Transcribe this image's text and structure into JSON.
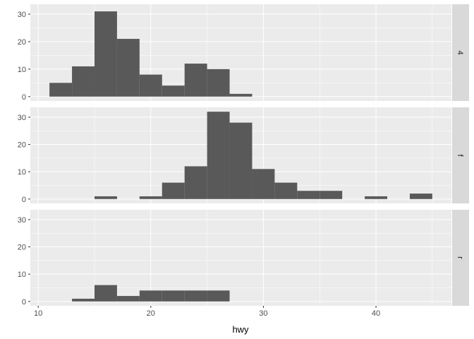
{
  "chart_data": {
    "type": "bar",
    "subtype": "faceted histogram",
    "xlabel": "hwy",
    "ylabel": "",
    "xlim": [
      9.3,
      46.7
    ],
    "ylim": [
      -1.6,
      33.6
    ],
    "xticks": [
      10,
      20,
      30,
      40
    ],
    "yticks": [
      0,
      10,
      20,
      30
    ],
    "binwidth": 2,
    "grid": true,
    "bar_color": "#595959",
    "panel_bg": "#EBEBEB",
    "strip_bg": "#D9D9D9",
    "facets": [
      {
        "label": "4",
        "bins": [
          [
            11,
            5
          ],
          [
            13,
            11
          ],
          [
            15,
            31
          ],
          [
            17,
            21
          ],
          [
            19,
            8
          ],
          [
            21,
            4
          ],
          [
            23,
            12
          ],
          [
            25,
            10
          ],
          [
            27,
            1
          ]
        ]
      },
      {
        "label": "f",
        "bins": [
          [
            15,
            1
          ],
          [
            19,
            1
          ],
          [
            21,
            6
          ],
          [
            23,
            12
          ],
          [
            25,
            32
          ],
          [
            27,
            28
          ],
          [
            29,
            11
          ],
          [
            31,
            6
          ],
          [
            33,
            3
          ],
          [
            35,
            3
          ],
          [
            39,
            1
          ],
          [
            43,
            2
          ]
        ]
      },
      {
        "label": "r",
        "bins": [
          [
            13,
            1
          ],
          [
            15,
            6
          ],
          [
            17,
            2
          ],
          [
            19,
            4
          ],
          [
            21,
            4
          ],
          [
            23,
            4
          ],
          [
            25,
            4
          ]
        ]
      }
    ]
  }
}
